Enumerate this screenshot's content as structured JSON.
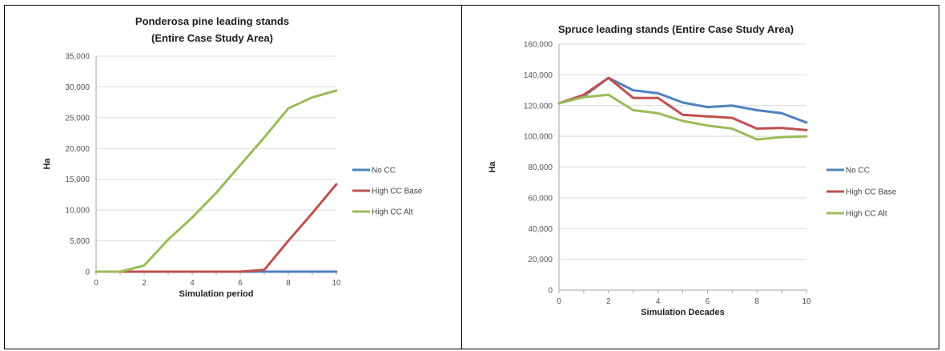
{
  "chart_data": [
    {
      "type": "line",
      "title": "Ponderosa pine leading stands (Entire Case Study Area)",
      "title_lines": [
        "Ponderosa pine leading stands",
        "(Entire Case Study Area)"
      ],
      "xlabel": "Simulation period",
      "ylabel": "Ha",
      "xlim": [
        0,
        10
      ],
      "ylim": [
        0,
        35000
      ],
      "x_ticks": [
        0,
        2,
        4,
        6,
        8,
        10
      ],
      "y_ticks": [
        0,
        5000,
        10000,
        15000,
        20000,
        25000,
        30000,
        35000
      ],
      "y_tick_labels": [
        "0",
        "5,000",
        "10,000",
        "15,000",
        "20,000",
        "25,000",
        "30,000",
        "35,000"
      ],
      "grid": "horizontal",
      "legend": "right",
      "x": [
        0,
        1,
        2,
        3,
        4,
        5,
        6,
        7,
        8,
        9,
        10
      ],
      "series": [
        {
          "name": "No CC",
          "color": "#4f81bd",
          "values": [
            0,
            0,
            0,
            0,
            0,
            0,
            0,
            0,
            0,
            0,
            0
          ]
        },
        {
          "name": "High CC Base",
          "color": "#c0504d",
          "values": [
            0,
            0,
            0,
            0,
            0,
            0,
            0,
            300,
            5000,
            9500,
            14200
          ]
        },
        {
          "name": "High CC Alt",
          "color": "#9bbb59",
          "values": [
            0,
            0,
            1000,
            5200,
            8800,
            12800,
            17300,
            21800,
            26500,
            28300,
            29400
          ]
        }
      ]
    },
    {
      "type": "line",
      "title": "Spruce leading stands (Entire Case Study Area)",
      "title_lines": [
        "Spruce leading stands (Entire Case Study Area)"
      ],
      "xlabel": "Simulation Decades",
      "ylabel": "Ha",
      "xlim": [
        0,
        10
      ],
      "ylim": [
        0,
        160000
      ],
      "x_ticks": [
        0,
        2,
        4,
        6,
        8,
        10
      ],
      "y_ticks": [
        0,
        20000,
        40000,
        60000,
        80000,
        100000,
        120000,
        140000,
        160000
      ],
      "y_tick_labels": [
        "0",
        "20,000",
        "40,000",
        "60,000",
        "80,000",
        "100,000",
        "120,000",
        "140,000",
        "160,000"
      ],
      "grid": "horizontal",
      "legend": "right",
      "x": [
        0,
        1,
        2,
        3,
        4,
        5,
        6,
        7,
        8,
        9,
        10
      ],
      "series": [
        {
          "name": "No CC",
          "color": "#4f81bd",
          "values": [
            121500,
            126000,
            138000,
            130000,
            128000,
            122000,
            119000,
            120000,
            117000,
            115000,
            109000
          ]
        },
        {
          "name": "High CC Base",
          "color": "#c0504d",
          "values": [
            121500,
            127000,
            138000,
            125000,
            125000,
            114000,
            113000,
            112000,
            105000,
            105500,
            104000
          ]
        },
        {
          "name": "High CC Alt",
          "color": "#9bbb59",
          "values": [
            121500,
            125500,
            127000,
            117000,
            115000,
            110000,
            107000,
            105000,
            98000,
            99500,
            100000
          ]
        }
      ]
    }
  ]
}
